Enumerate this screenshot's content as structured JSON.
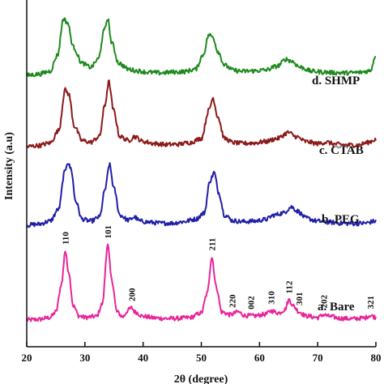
{
  "chart_data": {
    "type": "line",
    "xlabel": "2θ (degree)",
    "ylabel": "Intensity (a.u)",
    "xlim": [
      20,
      80
    ],
    "xticks": [
      20,
      30,
      40,
      50,
      60,
      70,
      80
    ],
    "yticks_shown": false,
    "grid": false,
    "series": [
      {
        "name": "a. Bare",
        "color": "#e8259a",
        "points": [
          [
            20,
            2.0
          ],
          [
            22,
            2.3
          ],
          [
            24,
            3.2
          ],
          [
            25,
            6
          ],
          [
            26,
            20
          ],
          [
            26.6,
            36
          ],
          [
            27.2,
            26
          ],
          [
            28,
            9
          ],
          [
            29,
            4
          ],
          [
            30,
            3.3
          ],
          [
            32,
            3.8
          ],
          [
            33,
            10
          ],
          [
            33.9,
            39
          ],
          [
            34.6,
            22
          ],
          [
            35.5,
            6
          ],
          [
            36.5,
            3.6
          ],
          [
            37.5,
            7
          ],
          [
            38,
            8
          ],
          [
            38.6,
            6
          ],
          [
            40,
            3.8
          ],
          [
            42,
            3.0
          ],
          [
            44,
            2.7
          ],
          [
            46,
            2.8
          ],
          [
            48,
            3.2
          ],
          [
            50,
            5.5
          ],
          [
            51,
            15
          ],
          [
            51.8,
            33
          ],
          [
            52.6,
            18
          ],
          [
            53.5,
            6
          ],
          [
            55,
            4.6
          ],
          [
            56.3,
            6
          ],
          [
            57.5,
            4.2
          ],
          [
            59,
            4.0
          ],
          [
            61,
            4.8
          ],
          [
            62,
            6.5
          ],
          [
            63.3,
            5.5
          ],
          [
            64.3,
            7
          ],
          [
            65.1,
            12
          ],
          [
            65.8,
            9
          ],
          [
            66.8,
            6
          ],
          [
            68,
            4
          ],
          [
            70,
            3.2
          ],
          [
            71,
            4.6
          ],
          [
            72,
            3.8
          ],
          [
            74,
            2.8
          ],
          [
            76,
            2.6
          ],
          [
            78,
            3.0
          ],
          [
            79,
            4.2
          ],
          [
            80,
            3.4
          ]
        ]
      },
      {
        "name": "b. PEG",
        "color": "#1f1fa8",
        "points": [
          [
            20,
            2.0
          ],
          [
            22,
            2.5
          ],
          [
            24,
            4
          ],
          [
            25.5,
            10
          ],
          [
            26.5,
            28
          ],
          [
            27,
            33
          ],
          [
            27.6,
            30
          ],
          [
            28.4,
            14
          ],
          [
            29.5,
            5
          ],
          [
            31,
            4
          ],
          [
            32.5,
            6
          ],
          [
            33.5,
            20
          ],
          [
            34.2,
            32
          ],
          [
            35,
            20
          ],
          [
            36,
            7
          ],
          [
            37.5,
            4.5
          ],
          [
            38.5,
            6
          ],
          [
            39.5,
            4
          ],
          [
            41,
            3.5
          ],
          [
            43,
            3
          ],
          [
            45,
            3
          ],
          [
            47,
            3.8
          ],
          [
            49,
            5
          ],
          [
            50.5,
            8
          ],
          [
            51.5,
            24
          ],
          [
            52.2,
            28
          ],
          [
            53,
            18
          ],
          [
            54,
            7
          ],
          [
            55.5,
            4.2
          ],
          [
            57,
            3.8
          ],
          [
            59,
            4
          ],
          [
            61,
            4.8
          ],
          [
            62.5,
            7
          ],
          [
            64,
            8
          ],
          [
            65.5,
            11
          ],
          [
            66.5,
            9
          ],
          [
            68,
            5.5
          ],
          [
            70,
            4
          ],
          [
            72,
            3.5
          ],
          [
            74,
            3
          ],
          [
            76,
            2.8
          ],
          [
            78,
            3
          ],
          [
            80,
            4
          ]
        ]
      },
      {
        "name": "c. CTAB",
        "color": "#8b1a1a",
        "points": [
          [
            20,
            2.0
          ],
          [
            22,
            2.5
          ],
          [
            24,
            3.8
          ],
          [
            25.5,
            10
          ],
          [
            26.6,
            30
          ],
          [
            27.2,
            28
          ],
          [
            28.2,
            12
          ],
          [
            29.5,
            5
          ],
          [
            31,
            4.2
          ],
          [
            32.5,
            7
          ],
          [
            33.4,
            22
          ],
          [
            34.1,
            34
          ],
          [
            34.9,
            20
          ],
          [
            36,
            7
          ],
          [
            37.5,
            5
          ],
          [
            38.5,
            7
          ],
          [
            40,
            4.5
          ],
          [
            42,
            3.5
          ],
          [
            44,
            3
          ],
          [
            46,
            3.2
          ],
          [
            48,
            4
          ],
          [
            50,
            6
          ],
          [
            51.3,
            20
          ],
          [
            52,
            26
          ],
          [
            52.8,
            17
          ],
          [
            54,
            6
          ],
          [
            55.5,
            4
          ],
          [
            57,
            3.6
          ],
          [
            59,
            3.8
          ],
          [
            61,
            4.5
          ],
          [
            63,
            6
          ],
          [
            65,
            9
          ],
          [
            66.2,
            7
          ],
          [
            68,
            4.5
          ],
          [
            70,
            3.5
          ],
          [
            71.5,
            4.2
          ],
          [
            73,
            3.2
          ],
          [
            75,
            2.8
          ],
          [
            77,
            2.8
          ],
          [
            78.5,
            4
          ],
          [
            80,
            5.5
          ]
        ]
      },
      {
        "name": "d. SHMP",
        "color": "#1e8a1e",
        "points": [
          [
            20,
            2.0
          ],
          [
            22,
            2.6
          ],
          [
            24,
            4
          ],
          [
            25.3,
            12
          ],
          [
            26.3,
            30
          ],
          [
            27,
            28
          ],
          [
            28,
            16
          ],
          [
            29.5,
            8
          ],
          [
            31,
            6
          ],
          [
            32.3,
            10
          ],
          [
            33.3,
            24
          ],
          [
            33.9,
            30
          ],
          [
            34.6,
            18
          ],
          [
            35.8,
            8
          ],
          [
            37.5,
            5
          ],
          [
            39,
            4.2
          ],
          [
            41,
            3.5
          ],
          [
            43,
            3.2
          ],
          [
            45,
            3.6
          ],
          [
            47,
            3.8
          ],
          [
            49,
            5
          ],
          [
            50.3,
            12
          ],
          [
            51.3,
            22
          ],
          [
            52,
            21
          ],
          [
            52.8,
            14
          ],
          [
            54,
            7
          ],
          [
            55.5,
            4.5
          ],
          [
            57,
            4
          ],
          [
            59,
            4.2
          ],
          [
            61,
            4.6
          ],
          [
            63,
            6.5
          ],
          [
            64.6,
            10
          ],
          [
            65.5,
            9
          ],
          [
            67,
            6
          ],
          [
            69,
            4
          ],
          [
            71,
            3.6
          ],
          [
            73,
            3.3
          ],
          [
            75,
            3.2
          ],
          [
            77,
            3.4
          ],
          [
            79,
            4.2
          ],
          [
            80,
            12
          ]
        ]
      }
    ],
    "peak_labels": [
      {
        "text": "110",
        "x": 26.6
      },
      {
        "text": "101",
        "x": 33.9
      },
      {
        "text": "200",
        "x": 38.0
      },
      {
        "text": "211",
        "x": 51.8
      },
      {
        "text": "220",
        "x": 55.3
      },
      {
        "text": "002",
        "x": 58.5
      },
      {
        "text": "310",
        "x": 62.0
      },
      {
        "text": "112",
        "x": 65.0
      },
      {
        "text": "301",
        "x": 66.8
      },
      {
        "text": "202",
        "x": 71.0
      },
      {
        "text": "321",
        "x": 79.0
      }
    ]
  }
}
